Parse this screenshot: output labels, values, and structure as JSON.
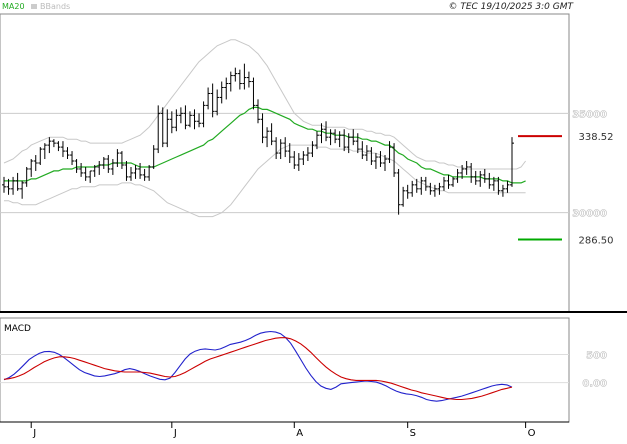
{
  "chart_data": [
    {
      "type": "candlestick",
      "panel": "price",
      "legend": [
        {
          "name": "MA20",
          "color": "#22aa22"
        },
        {
          "name": "BBands",
          "color": "#bbbbbb"
        }
      ],
      "copyright": "© TEC 19/10/2025 3:0 GMT",
      "yticks": [
        {
          "value": 350,
          "label": "35000"
        },
        {
          "value": 300,
          "label": "30000"
        }
      ],
      "ylim": [
        250,
        400
      ],
      "resistance": {
        "value": 338.52,
        "label": "338.52",
        "color": "#cc0000"
      },
      "support": {
        "value": 286.5,
        "label": "286.50",
        "color": "#00aa00"
      },
      "xticks": [
        {
          "index": 6,
          "label": "J"
        },
        {
          "index": 37,
          "label": "J"
        },
        {
          "index": 64,
          "label": "A"
        },
        {
          "index": 89,
          "label": "S"
        },
        {
          "index": 115,
          "label": "O"
        }
      ],
      "ohlc": [
        [
          314,
          318,
          310,
          313
        ],
        [
          313,
          317,
          309,
          312
        ],
        [
          312,
          318,
          309,
          316
        ],
        [
          316,
          320,
          311,
          312
        ],
        [
          312,
          316,
          307,
          315
        ],
        [
          315,
          323,
          313,
          322
        ],
        [
          322,
          327,
          318,
          326
        ],
        [
          326,
          329,
          321,
          325
        ],
        [
          325,
          333,
          324,
          332
        ],
        [
          332,
          335,
          327,
          334
        ],
        [
          334,
          338,
          330,
          336
        ],
        [
          336,
          337,
          333,
          335
        ],
        [
          335,
          336,
          331,
          333
        ],
        [
          333,
          336,
          328,
          331
        ],
        [
          331,
          333,
          327,
          329
        ],
        [
          329,
          331,
          324,
          326
        ],
        [
          326,
          327,
          320,
          322
        ],
        [
          322,
          325,
          318,
          320
        ],
        [
          320,
          323,
          316,
          318
        ],
        [
          318,
          321,
          315,
          321
        ],
        [
          321,
          324,
          318,
          323
        ],
        [
          323,
          326,
          319,
          324
        ],
        [
          324,
          328,
          322,
          327
        ],
        [
          327,
          329,
          320,
          322
        ],
        [
          322,
          327,
          319,
          325
        ],
        [
          325,
          332,
          323,
          330
        ],
        [
          330,
          331,
          322,
          324
        ],
        [
          324,
          326,
          316,
          318
        ],
        [
          318,
          323,
          316,
          320
        ],
        [
          320,
          324,
          317,
          322
        ],
        [
          322,
          325,
          317,
          319
        ],
        [
          319,
          322,
          316,
          318
        ],
        [
          318,
          324,
          316,
          323
        ],
        [
          323,
          334,
          322,
          332
        ],
        [
          332,
          354,
          330,
          350
        ],
        [
          350,
          353,
          333,
          335
        ],
        [
          335,
          352,
          333,
          347
        ],
        [
          347,
          351,
          340,
          343
        ],
        [
          343,
          352,
          341,
          349
        ],
        [
          349,
          353,
          345,
          350
        ],
        [
          350,
          354,
          342,
          344
        ],
        [
          344,
          351,
          343,
          349
        ],
        [
          349,
          352,
          342,
          346
        ],
        [
          346,
          350,
          343,
          345
        ],
        [
          345,
          356,
          343,
          354
        ],
        [
          354,
          363,
          352,
          360
        ],
        [
          360,
          365,
          348,
          351
        ],
        [
          351,
          362,
          349,
          358
        ],
        [
          358,
          366,
          355,
          363
        ],
        [
          363,
          368,
          357,
          365
        ],
        [
          365,
          371,
          361,
          369
        ],
        [
          369,
          373,
          366,
          370
        ],
        [
          370,
          372,
          362,
          365
        ],
        [
          365,
          375,
          362,
          368
        ],
        [
          368,
          371,
          363,
          366
        ],
        [
          366,
          368,
          352,
          354
        ],
        [
          354,
          357,
          345,
          347
        ],
        [
          347,
          350,
          335,
          338
        ],
        [
          338,
          343,
          333,
          341
        ],
        [
          341,
          345,
          334,
          336
        ],
        [
          336,
          338,
          327,
          330
        ],
        [
          330,
          337,
          327,
          335
        ],
        [
          335,
          338,
          328,
          331
        ],
        [
          331,
          335,
          325,
          328
        ],
        [
          328,
          331,
          322,
          324
        ],
        [
          324,
          330,
          321,
          327
        ],
        [
          327,
          331,
          324,
          329
        ],
        [
          329,
          333,
          326,
          330
        ],
        [
          330,
          336,
          328,
          334
        ],
        [
          334,
          341,
          332,
          339
        ],
        [
          339,
          345,
          335,
          342
        ],
        [
          342,
          346,
          336,
          338
        ],
        [
          338,
          342,
          334,
          340
        ],
        [
          340,
          342,
          335,
          337
        ],
        [
          337,
          341,
          333,
          339
        ],
        [
          339,
          342,
          331,
          333
        ],
        [
          333,
          340,
          330,
          338
        ],
        [
          338,
          342,
          334,
          336
        ],
        [
          336,
          340,
          330,
          332
        ],
        [
          332,
          336,
          327,
          329
        ],
        [
          329,
          334,
          326,
          331
        ],
        [
          331,
          333,
          324,
          326
        ],
        [
          326,
          330,
          322,
          328
        ],
        [
          328,
          331,
          323,
          325
        ],
        [
          325,
          329,
          321,
          327
        ],
        [
          327,
          336,
          325,
          333
        ],
        [
          333,
          335,
          318,
          320
        ],
        [
          320,
          322,
          299,
          304
        ],
        [
          304,
          313,
          303,
          311
        ],
        [
          311,
          314,
          307,
          310
        ],
        [
          310,
          316,
          308,
          314
        ],
        [
          314,
          317,
          310,
          312
        ],
        [
          312,
          318,
          309,
          316
        ],
        [
          316,
          318,
          311,
          313
        ],
        [
          313,
          315,
          309,
          311
        ],
        [
          311,
          314,
          308,
          312
        ],
        [
          312,
          315,
          309,
          313
        ],
        [
          313,
          318,
          311,
          316
        ],
        [
          316,
          319,
          312,
          314
        ],
        [
          314,
          318,
          313,
          317
        ],
        [
          317,
          322,
          315,
          320
        ],
        [
          320,
          324,
          317,
          322
        ],
        [
          322,
          326,
          319,
          323
        ],
        [
          323,
          325,
          315,
          318
        ],
        [
          318,
          321,
          314,
          316
        ],
        [
          316,
          321,
          313,
          319
        ],
        [
          319,
          322,
          315,
          317
        ],
        [
          317,
          320,
          312,
          314
        ],
        [
          314,
          318,
          311,
          316
        ],
        [
          316,
          318,
          309,
          311
        ],
        [
          311,
          314,
          308,
          312
        ],
        [
          312,
          316,
          310,
          314
        ],
        [
          314,
          338,
          313,
          335
        ]
      ],
      "ma20": [
        316,
        316,
        316,
        316,
        316,
        316,
        317,
        317,
        318,
        319,
        320,
        321,
        321,
        322,
        322,
        322,
        323,
        323,
        323,
        323,
        323,
        324,
        324,
        324,
        325,
        325,
        325,
        325,
        325,
        324,
        323,
        323,
        323,
        323,
        324,
        325,
        326,
        327,
        328,
        329,
        330,
        331,
        332,
        333,
        334,
        336,
        337,
        339,
        341,
        343,
        345,
        347,
        349,
        350,
        352,
        353,
        353,
        352,
        352,
        351,
        350,
        349,
        348,
        347,
        345,
        344,
        343,
        342,
        342,
        341,
        341,
        340,
        340,
        339,
        339,
        339,
        338,
        338,
        338,
        337,
        337,
        336,
        336,
        335,
        334,
        334,
        332,
        330,
        329,
        327,
        326,
        325,
        323,
        322,
        322,
        321,
        320,
        319,
        319,
        318,
        318,
        318,
        318,
        318,
        318,
        318,
        317,
        317,
        317,
        317,
        316,
        316,
        315,
        315,
        315,
        316
      ],
      "bb_upper": [
        325,
        326,
        327,
        329,
        331,
        332,
        334,
        335,
        336,
        337,
        338,
        338,
        338,
        338,
        337,
        337,
        337,
        336,
        336,
        335,
        335,
        335,
        335,
        335,
        335,
        335,
        335,
        336,
        337,
        338,
        339,
        341,
        343,
        346,
        349,
        352,
        355,
        358,
        361,
        364,
        367,
        370,
        373,
        376,
        378,
        380,
        382,
        384,
        385,
        386,
        387,
        387,
        386,
        385,
        384,
        382,
        380,
        377,
        374,
        370,
        366,
        362,
        358,
        354,
        350,
        348,
        346,
        345,
        344,
        344,
        344,
        343,
        343,
        343,
        343,
        343,
        342,
        342,
        342,
        342,
        341,
        341,
        340,
        340,
        339,
        339,
        338,
        336,
        334,
        332,
        330,
        328,
        327,
        326,
        326,
        326,
        325,
        325,
        324,
        324,
        323,
        323,
        322,
        322,
        322,
        322,
        322,
        322,
        322,
        322,
        322,
        322,
        322,
        322,
        323,
        326
      ],
      "bb_lower": [
        306,
        306,
        305,
        305,
        304,
        304,
        304,
        304,
        305,
        306,
        307,
        308,
        309,
        310,
        311,
        312,
        312,
        313,
        313,
        313,
        313,
        314,
        314,
        314,
        314,
        314,
        315,
        315,
        315,
        314,
        314,
        313,
        312,
        311,
        309,
        307,
        305,
        304,
        303,
        302,
        301,
        300,
        299,
        298,
        298,
        298,
        298,
        299,
        300,
        302,
        304,
        307,
        310,
        313,
        316,
        319,
        322,
        324,
        326,
        328,
        330,
        332,
        333,
        334,
        334,
        334,
        334,
        334,
        334,
        333,
        333,
        333,
        332,
        332,
        332,
        332,
        332,
        331,
        331,
        331,
        330,
        330,
        330,
        329,
        328,
        327,
        326,
        324,
        322,
        320,
        318,
        316,
        315,
        314,
        313,
        312,
        311,
        311,
        310,
        310,
        310,
        310,
        310,
        310,
        310,
        310,
        310,
        310,
        310,
        310,
        310,
        310,
        310,
        310,
        310,
        310
      ]
    },
    {
      "type": "line",
      "panel": "macd",
      "title": "MACD",
      "yticks": [
        {
          "value": 500,
          "label": "500"
        },
        {
          "value": 0,
          "label": "0.00"
        }
      ],
      "ylim": [
        -700,
        1150
      ],
      "series": [
        {
          "name": "",
          "color": "#2222cc",
          "values": [
            50,
            90,
            150,
            230,
            320,
            410,
            470,
            520,
            550,
            555,
            540,
            500,
            440,
            370,
            300,
            230,
            180,
            150,
            120,
            110,
            120,
            140,
            160,
            190,
            230,
            250,
            230,
            200,
            160,
            120,
            90,
            60,
            50,
            80,
            180,
            300,
            420,
            510,
            560,
            590,
            600,
            590,
            580,
            600,
            640,
            680,
            700,
            720,
            750,
            790,
            840,
            880,
            900,
            910,
            900,
            870,
            800,
            700,
            560,
            410,
            260,
            130,
            20,
            -60,
            -100,
            -120,
            -80,
            -20,
            -10,
            0,
            10,
            20,
            30,
            20,
            10,
            -20,
            -60,
            -110,
            -150,
            -180,
            -200,
            -210,
            -230,
            -260,
            -300,
            -320,
            -330,
            -320,
            -300,
            -280,
            -260,
            -240,
            -210,
            -180,
            -150,
            -120,
            -90,
            -60,
            -40,
            -30,
            -40,
            -80
          ],
          "values_note": ""
        },
        {
          "name": "",
          "color": "#cc0000",
          "values": [
            60,
            70,
            90,
            120,
            160,
            210,
            270,
            320,
            370,
            410,
            440,
            460,
            460,
            450,
            430,
            400,
            370,
            340,
            310,
            280,
            250,
            230,
            210,
            200,
            190,
            190,
            190,
            190,
            180,
            170,
            150,
            130,
            110,
            100,
            110,
            140,
            180,
            230,
            280,
            330,
            380,
            420,
            450,
            480,
            510,
            540,
            570,
            600,
            630,
            660,
            690,
            720,
            750,
            770,
            790,
            800,
            800,
            780,
            740,
            690,
            620,
            540,
            450,
            360,
            280,
            210,
            150,
            100,
            70,
            50,
            40,
            40,
            40,
            40,
            40,
            30,
            10,
            -10,
            -40,
            -70,
            -100,
            -130,
            -150,
            -180,
            -200,
            -220,
            -240,
            -260,
            -280,
            -290,
            -300,
            -300,
            -290,
            -280,
            -260,
            -240,
            -210,
            -180,
            -150,
            -120,
            -100,
            -80
          ]
        }
      ]
    }
  ]
}
